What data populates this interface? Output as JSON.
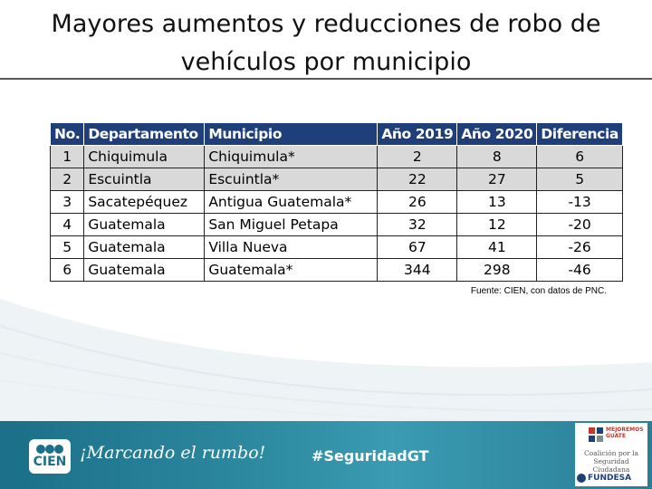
{
  "title": {
    "line1": "Mayores aumentos y reducciones de robo de",
    "line2": "vehículos por municipio"
  },
  "table": {
    "headers": [
      "No.",
      "Departamento",
      "Municipio",
      "Año 2019",
      "Año 2020",
      "Diferencia"
    ],
    "rows": [
      [
        "1",
        "Chiquimula",
        "Chiquimula*",
        "2",
        "8",
        "6"
      ],
      [
        "2",
        "Escuintla",
        "Escuintla*",
        "22",
        "27",
        "5"
      ],
      [
        "3",
        "Sacatepéquez",
        "Antigua Guatemala*",
        "26",
        "13",
        "-13"
      ],
      [
        "4",
        "Guatemala",
        "San Miguel Petapa",
        "32",
        "12",
        "-20"
      ],
      [
        "5",
        "Guatemala",
        "Villa Nueva",
        "67",
        "41",
        "-26"
      ],
      [
        "6",
        "Guatemala",
        "Guatemala*",
        "344",
        "298",
        "-46"
      ]
    ]
  },
  "source": "Fuente: CIEN, con datos de PNC.",
  "footer": {
    "logo_text": "CIEN",
    "slogan": "¡Marcando el rumbo!",
    "hashtag": "#SeguridadGT",
    "partner_top": "MEJOREMOS GUATE",
    "partner_name_1": "Coalición por la",
    "partner_name_2": "Seguridad Ciudadana",
    "partner_org": "FUNDESA"
  },
  "colors": {
    "header_bg": "#1f3f7a",
    "shaded_row": "#d9d9d9",
    "footer_bg": "#2a8aa0"
  }
}
